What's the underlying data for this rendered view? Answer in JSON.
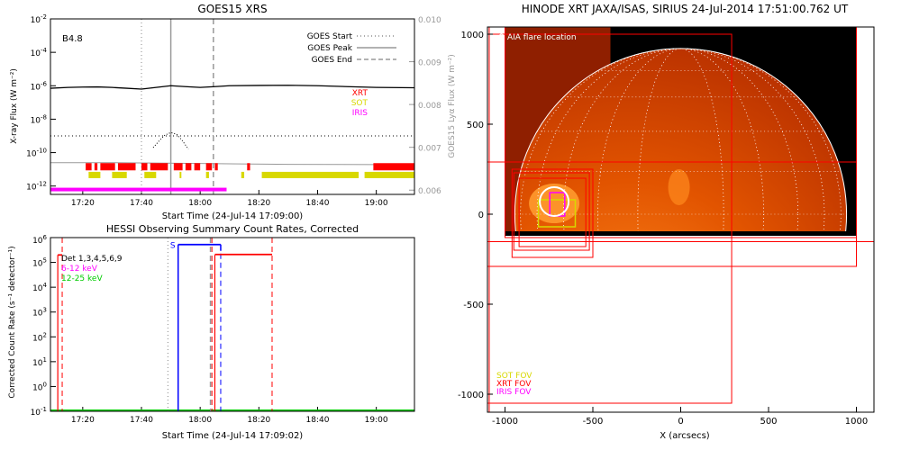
{
  "colors": {
    "xrt": "#ff0000",
    "sot": "#d8d800",
    "iris": "#ff00ff",
    "hessi_det": "#000000",
    "hessi_low": "#ff00ff",
    "hessi_high": "#00cc00",
    "blue": "#0000ff",
    "grey": "#999999",
    "disk_dark": "#c23a00",
    "disk_mid": "#e65c00",
    "disk_bright": "#ff9a2e"
  },
  "chart_data": [
    {
      "type": "line",
      "title": "GOES15 XRS",
      "xlabel": "Start Time (24-Jul-14 17:09:00)",
      "ylabel": "X-ray Flux (W m⁻²)",
      "y2label": "GOES15 Lyα Flux (W m⁻²)",
      "x_ticks": [
        "17:20",
        "17:40",
        "18:00",
        "18:20",
        "18:40",
        "19:00"
      ],
      "y_ticks": [
        {
          "base": "10",
          "exp": "-2",
          "v": -2
        },
        {
          "base": "10",
          "exp": "-4",
          "v": -4
        },
        {
          "base": "10",
          "exp": "-6",
          "v": -6
        },
        {
          "base": "10",
          "exp": "-8",
          "v": -8
        },
        {
          "base": "10",
          "exp": "-10",
          "v": -10
        },
        {
          "base": "10",
          "exp": "-12",
          "v": -12
        }
      ],
      "y2_ticks": [
        "0.010",
        "0.009",
        "0.008",
        "0.007",
        "0.006"
      ],
      "y2_vals": [
        0.01,
        0.009,
        0.008,
        0.007,
        0.006
      ],
      "ylim_log10": [
        -12.5,
        -2
      ],
      "y2lim": [
        0.0059,
        0.01
      ],
      "xlim_min": [
        9,
        133
      ],
      "class_label": "B4.8",
      "legend": [
        {
          "label": "GOES Start",
          "style": "dotted"
        },
        {
          "label": "GOES Peak",
          "style": "solid"
        },
        {
          "label": "GOES End",
          "style": "dashed"
        }
      ],
      "instrument_legend": [
        {
          "label": "XRT",
          "color": "#ff0000"
        },
        {
          "label": "SOT",
          "color": "#d8d800"
        },
        {
          "label": "IRIS",
          "color": "#ff00ff"
        }
      ],
      "markers_min": {
        "start": 40,
        "peak": 50,
        "end": 64.5
      },
      "series": [
        {
          "name": "GOES long",
          "log10": [
            [
              9,
              -6.15
            ],
            [
              15,
              -6.1
            ],
            [
              20,
              -6.08
            ],
            [
              25,
              -6.07
            ],
            [
              30,
              -6.1
            ],
            [
              35,
              -6.15
            ],
            [
              40,
              -6.2
            ],
            [
              45,
              -6.1
            ],
            [
              50,
              -6.0
            ],
            [
              55,
              -6.05
            ],
            [
              60,
              -6.1
            ],
            [
              65,
              -6.05
            ],
            [
              70,
              -6.0
            ],
            [
              80,
              -5.98
            ],
            [
              90,
              -5.97
            ],
            [
              100,
              -6.0
            ],
            [
              110,
              -6.05
            ],
            [
              120,
              -6.1
            ],
            [
              133,
              -6.12
            ]
          ]
        },
        {
          "name": "GOES short",
          "log10": [
            [
              44,
              -9.7
            ],
            [
              46,
              -9.3
            ],
            [
              48,
              -8.95
            ],
            [
              50,
              -8.8
            ],
            [
              52,
              -8.9
            ],
            [
              54,
              -9.3
            ],
            [
              56,
              -9.8
            ]
          ]
        },
        {
          "name": "Lyman alpha",
          "log10": [
            [
              9,
              -10.6
            ],
            [
              30,
              -10.6
            ],
            [
              60,
              -10.65
            ],
            [
              90,
              -10.7
            ],
            [
              133,
              -10.72
            ]
          ]
        }
      ],
      "coverage_min": {
        "xrt": [
          [
            21,
            23
          ],
          [
            24,
            25
          ],
          [
            26,
            31
          ],
          [
            32,
            38
          ],
          [
            40,
            42
          ],
          [
            43,
            49
          ],
          [
            51,
            54
          ],
          [
            55,
            57
          ],
          [
            58,
            60
          ],
          [
            62,
            64
          ],
          [
            65,
            66
          ],
          [
            76,
            77
          ],
          [
            119,
            133
          ]
        ],
        "sot": [
          [
            22,
            26
          ],
          [
            30,
            35
          ],
          [
            41,
            45
          ],
          [
            53,
            53.6
          ],
          [
            62,
            63
          ],
          [
            74,
            75
          ],
          [
            81,
            114
          ],
          [
            116,
            133
          ]
        ],
        "iris": [
          [
            9,
            69
          ]
        ]
      }
    },
    {
      "type": "line",
      "title": "HESSI Observing Summary Count Rates, Corrected",
      "xlabel": "Start Time (24-Jul-14 17:09:02)",
      "ylabel": "Corrected Count Rate (s⁻¹ detector⁻¹)",
      "x_ticks": [
        "17:20",
        "17:40",
        "18:00",
        "18:20",
        "18:40",
        "19:00"
      ],
      "y_ticks": [
        {
          "base": "10",
          "exp": "5",
          "v": 5
        },
        {
          "base": "10",
          "exp": "4",
          "v": 4
        },
        {
          "base": "10",
          "exp": "3",
          "v": 3
        },
        {
          "base": "10",
          "exp": "2",
          "v": 2
        },
        {
          "base": "10",
          "exp": "1",
          "v": 1
        },
        {
          "base": "10",
          "exp": "0",
          "v": 0
        },
        {
          "base": "10",
          "exp": "-1",
          "v": -1
        }
      ],
      "ylim_log10": [
        -1,
        6
      ],
      "xlim_min": [
        9,
        133
      ],
      "legend": [
        {
          "label": "Det 1,3,4,5,6,9",
          "color": "#000000"
        },
        {
          "label": "6-12 keV",
          "color": "#ff00ff"
        },
        {
          "label": "12-25 keV",
          "color": "#00cc00"
        }
      ],
      "saa_label": "S",
      "red_solid_min": [
        11.5,
        65
      ],
      "red_dashed_min": [
        13,
        64,
        84.5
      ],
      "blue_solid_min": 52.5,
      "blue_dashed_min": 67,
      "grey_dotted_min": 49,
      "grey_dashed_min": 63.5,
      "segments": [
        {
          "x": [
            11.5,
            13
          ],
          "log10": 5.3,
          "color": "#ff0000"
        },
        {
          "x": [
            52.5,
            67
          ],
          "log10": 5.72,
          "color": "#0000ff"
        },
        {
          "x": [
            65,
            84.5
          ],
          "log10": 5.32,
          "color": "#ff0000"
        }
      ]
    },
    {
      "type": "image",
      "title": "HINODE XRT JAXA/ISAS, SIRIUS 24-Jul-2014 17:51:00.762 UT",
      "xlabel": "X (arcsecs)",
      "x_ticks": [
        -1000,
        -500,
        0,
        500,
        1000
      ],
      "y_ticks": [
        1000,
        500,
        0,
        -500,
        -1000
      ],
      "xlim": [
        -1100,
        1100
      ],
      "ylim": [
        -1100,
        1040
      ],
      "annotation": "O AIA flare location",
      "fov_legend": [
        {
          "label": "SOT FOV",
          "color": "#d8d800"
        },
        {
          "label": "XRT FOV",
          "color": "#ff0000"
        },
        {
          "label": "IRIS FOV",
          "color": "#ff00ff"
        }
      ],
      "flare_location_arcsec": [
        -720,
        70
      ],
      "disk_radius_arcsec": 944
    }
  ]
}
